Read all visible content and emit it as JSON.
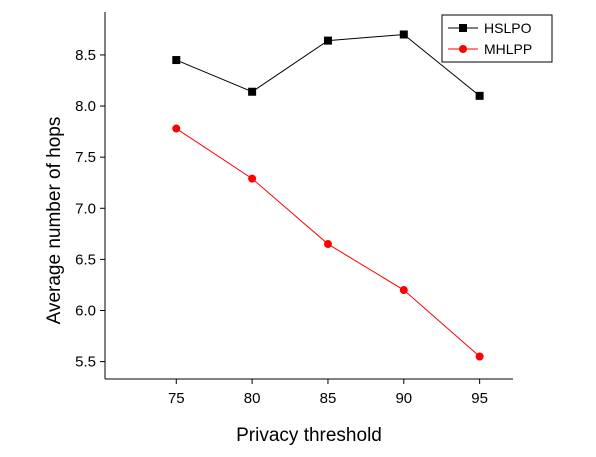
{
  "chart_data": {
    "type": "line",
    "title": "",
    "xlabel": "Privacy threshold",
    "ylabel": "Average number of hops",
    "x": [
      75,
      80,
      85,
      90,
      95
    ],
    "xlim": [
      70.3,
      97.2
    ],
    "ylim": [
      5.33,
      8.92
    ],
    "xticks": [
      "75",
      "80",
      "85",
      "90",
      "95"
    ],
    "yticks": [
      "5.5",
      "6.0",
      "6.5",
      "7.0",
      "7.5",
      "8.0",
      "8.5"
    ],
    "grid": false,
    "legend_position": "top-right",
    "series": [
      {
        "name": "HSLPO",
        "values": [
          8.45,
          8.14,
          8.64,
          8.7,
          8.1
        ],
        "color": "#000000",
        "marker": "square"
      },
      {
        "name": "MHLPP",
        "values": [
          7.78,
          7.29,
          6.65,
          6.2,
          5.55
        ],
        "color": "#ff0000",
        "marker": "circle"
      }
    ]
  }
}
